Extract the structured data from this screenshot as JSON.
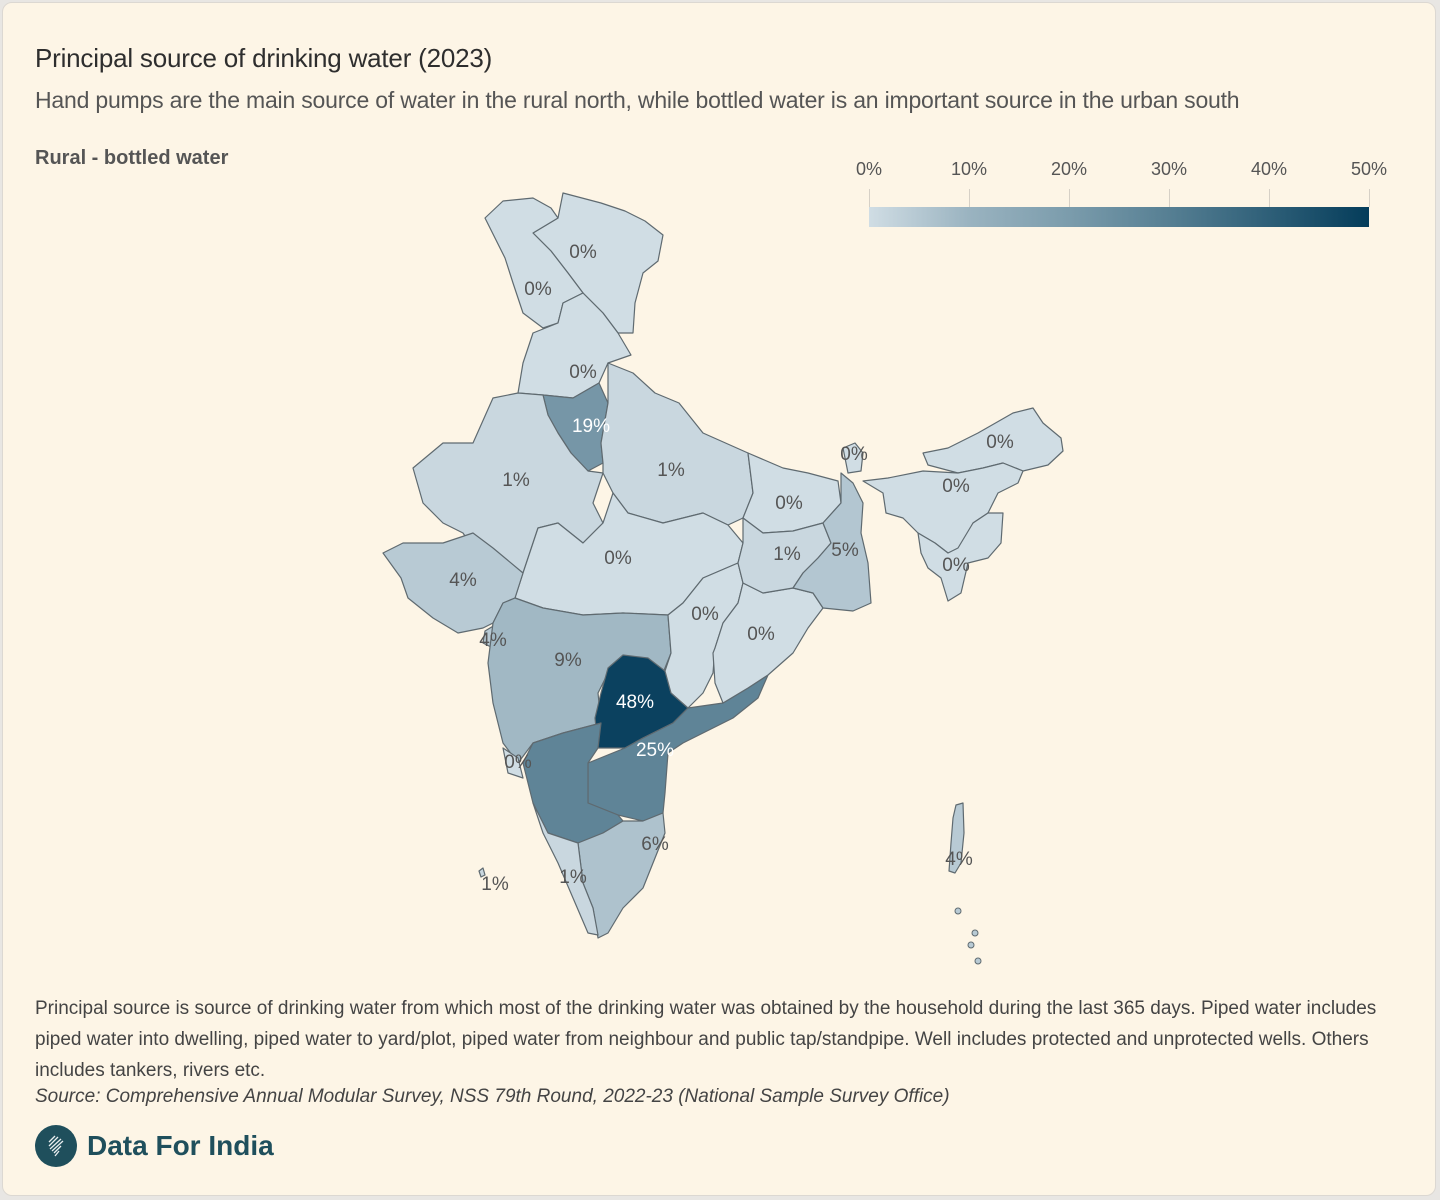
{
  "header": {
    "title": "Principal source of drinking water (2023)",
    "subtitle": "Hand pumps are the main source of water in the rural north, while bottled water is an important source in the urban south"
  },
  "map_label": "Rural - bottled water",
  "legend": {
    "ticks": [
      "0%",
      "10%",
      "20%",
      "30%",
      "40%",
      "50%"
    ],
    "min": 0,
    "max": 50,
    "color_low": "#d0dde4",
    "color_high": "#043c5a"
  },
  "chart_data": {
    "type": "choropleth",
    "title": "Principal source of drinking water (2023)",
    "subtitle": "Rural - bottled water",
    "unit": "%",
    "scale": [
      0,
      50
    ],
    "regions": [
      {
        "name": "Jammu & Kashmir / Ladakh",
        "value": 0,
        "label": "0%"
      },
      {
        "name": "Jammu & Kashmir (west)",
        "value": 0,
        "label": "0%"
      },
      {
        "name": "Himachal Pradesh / Punjab",
        "value": 0,
        "label": "0%"
      },
      {
        "name": "Haryana / Delhi",
        "value": 19,
        "label": "19%"
      },
      {
        "name": "Rajasthan",
        "value": 1,
        "label": "1%"
      },
      {
        "name": "Uttar Pradesh",
        "value": 1,
        "label": "1%"
      },
      {
        "name": "Madhya Pradesh",
        "value": 0,
        "label": "0%"
      },
      {
        "name": "Gujarat",
        "value": 4,
        "label": "4%"
      },
      {
        "name": "Dadra & Nagar Haveli / Daman & Diu",
        "value": 4,
        "label": "4%"
      },
      {
        "name": "Maharashtra",
        "value": 9,
        "label": "9%"
      },
      {
        "name": "Goa",
        "value": 0,
        "label": "0%"
      },
      {
        "name": "Telangana",
        "value": 48,
        "label": "48%"
      },
      {
        "name": "Andhra Pradesh",
        "value": 25,
        "label": "25%"
      },
      {
        "name": "Chhattisgarh",
        "value": 0,
        "label": "0%"
      },
      {
        "name": "Odisha",
        "value": 0,
        "label": "0%"
      },
      {
        "name": "Bihar",
        "value": 0,
        "label": "0%"
      },
      {
        "name": "Jharkhand",
        "value": 1,
        "label": "1%"
      },
      {
        "name": "West Bengal",
        "value": 5,
        "label": "5%"
      },
      {
        "name": "Sikkim",
        "value": 0,
        "label": "0%"
      },
      {
        "name": "Arunachal Pradesh",
        "value": 0,
        "label": "0%"
      },
      {
        "name": "Assam",
        "value": 0,
        "label": "0%"
      },
      {
        "name": "Mizoram / Tripura",
        "value": 0,
        "label": "0%"
      },
      {
        "name": "Tamil Nadu",
        "value": 6,
        "label": "6%"
      },
      {
        "name": "Kerala",
        "value": 1,
        "label": "1%"
      },
      {
        "name": "Lakshadweep",
        "value": 1,
        "label": "1%"
      },
      {
        "name": "Andaman & Nicobar Islands",
        "value": 4,
        "label": "4%"
      }
    ]
  },
  "footer": {
    "note": "Principal source is source of drinking water from which most of the drinking water was obtained by the household during the last 365 days. Piped water includes piped water into dwelling, piped water to yard/plot, piped water from neighbour and public tap/standpipe. Well includes protected and unprotected wells. Others includes tankers, rivers etc.",
    "source": "Source: Comprehensive Annual Modular Survey, NSS 79th Round, 2022-23 (National Sample Survey Office)",
    "brand": "Data For India",
    "brand_icon": "india-map-logo-icon"
  }
}
